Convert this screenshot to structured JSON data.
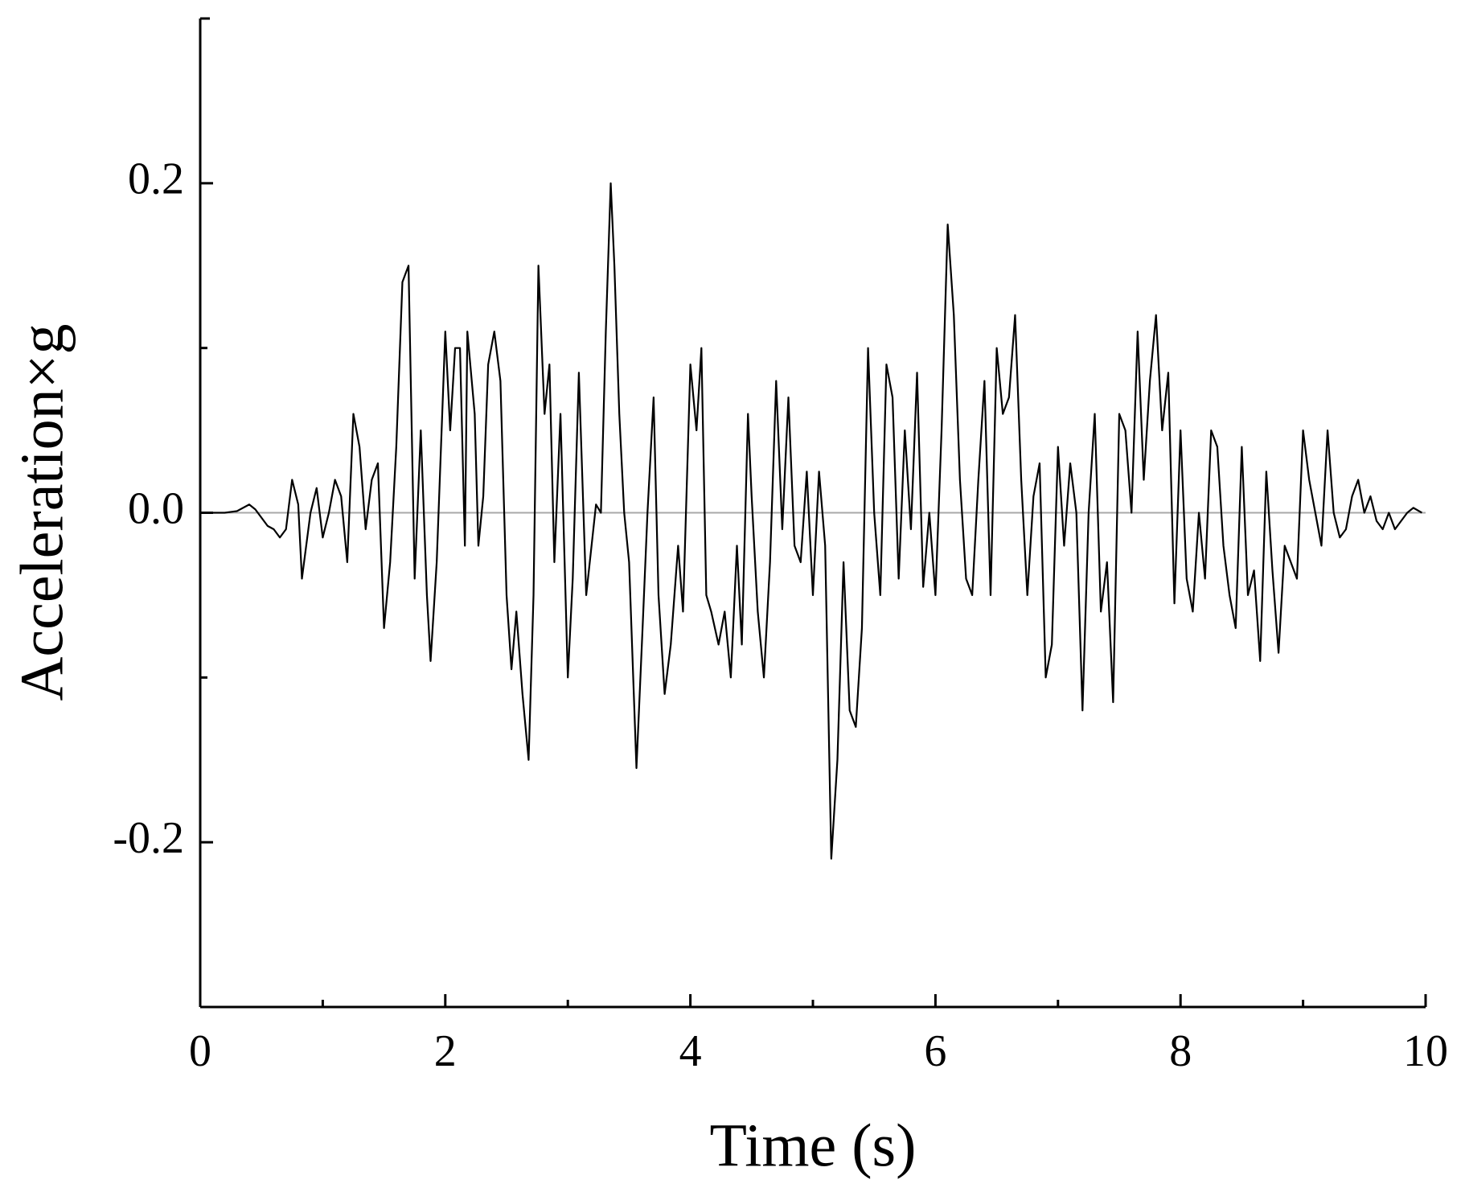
{
  "chart_data": {
    "type": "line",
    "xlabel": "Time (s)",
    "ylabel": "Acceleration×g",
    "x": [
      0,
      0.1,
      0.2,
      0.3,
      0.4,
      0.45,
      0.5,
      0.55,
      0.6,
      0.65,
      0.7,
      0.75,
      0.8,
      0.83,
      0.9,
      0.95,
      1.0,
      1.05,
      1.1,
      1.15,
      1.2,
      1.25,
      1.3,
      1.35,
      1.4,
      1.45,
      1.5,
      1.55,
      1.6,
      1.65,
      1.7,
      1.75,
      1.8,
      1.85,
      1.88,
      1.93,
      1.97,
      2.0,
      2.04,
      2.08,
      2.12,
      2.16,
      2.18,
      2.24,
      2.27,
      2.31,
      2.35,
      2.4,
      2.45,
      2.5,
      2.54,
      2.58,
      2.63,
      2.68,
      2.72,
      2.76,
      2.81,
      2.85,
      2.89,
      2.94,
      3.0,
      3.04,
      3.09,
      3.15,
      3.23,
      3.27,
      3.31,
      3.35,
      3.38,
      3.42,
      3.46,
      3.5,
      3.56,
      3.61,
      3.65,
      3.7,
      3.74,
      3.79,
      3.84,
      3.9,
      3.94,
      4.0,
      4.05,
      4.09,
      4.13,
      4.17,
      4.23,
      4.28,
      4.33,
      4.38,
      4.42,
      4.47,
      4.5,
      4.55,
      4.6,
      4.65,
      4.7,
      4.75,
      4.8,
      4.85,
      4.9,
      4.95,
      5.0,
      5.05,
      5.1,
      5.15,
      5.2,
      5.25,
      5.3,
      5.35,
      5.4,
      5.45,
      5.5,
      5.55,
      5.6,
      5.65,
      5.7,
      5.75,
      5.8,
      5.85,
      5.9,
      5.95,
      6.0,
      6.05,
      6.1,
      6.15,
      6.2,
      6.25,
      6.3,
      6.35,
      6.4,
      6.45,
      6.5,
      6.55,
      6.6,
      6.65,
      6.7,
      6.75,
      6.8,
      6.85,
      6.9,
      6.95,
      7.0,
      7.05,
      7.1,
      7.15,
      7.2,
      7.25,
      7.3,
      7.35,
      7.4,
      7.45,
      7.5,
      7.55,
      7.6,
      7.65,
      7.7,
      7.75,
      7.8,
      7.85,
      7.9,
      7.95,
      8.0,
      8.05,
      8.1,
      8.15,
      8.2,
      8.25,
      8.3,
      8.35,
      8.4,
      8.45,
      8.5,
      8.55,
      8.6,
      8.65,
      8.7,
      8.75,
      8.8,
      8.85,
      8.9,
      8.95,
      9.0,
      9.05,
      9.1,
      9.15,
      9.2,
      9.25,
      9.3,
      9.35,
      9.4,
      9.45,
      9.5,
      9.55,
      9.6,
      9.65,
      9.7,
      9.75,
      9.8,
      9.85,
      9.9,
      9.97
    ],
    "values": [
      0,
      0,
      0,
      0.001,
      0.005,
      0.002,
      -0.003,
      -0.008,
      -0.01,
      -0.015,
      -0.01,
      0.02,
      0.005,
      -0.04,
      0,
      0.015,
      -0.015,
      0,
      0.02,
      0.01,
      -0.03,
      0.06,
      0.04,
      -0.01,
      0.02,
      0.03,
      -0.07,
      -0.03,
      0.04,
      0.14,
      0.15,
      -0.04,
      0.05,
      -0.05,
      -0.09,
      -0.03,
      0.05,
      0.11,
      0.05,
      0.1,
      0.1,
      -0.02,
      0.11,
      0.06,
      -0.02,
      0.01,
      0.09,
      0.11,
      0.08,
      -0.05,
      -0.095,
      -0.06,
      -0.11,
      -0.15,
      -0.05,
      0.15,
      0.06,
      0.09,
      -0.03,
      0.06,
      -0.1,
      -0.04,
      0.085,
      -0.05,
      0.005,
      0,
      0.11,
      0.2,
      0.15,
      0.06,
      0,
      -0.03,
      -0.155,
      -0.07,
      0,
      0.07,
      -0.05,
      -0.11,
      -0.08,
      -0.02,
      -0.06,
      0.09,
      0.05,
      0.1,
      -0.05,
      -0.06,
      -0.08,
      -0.06,
      -0.1,
      -0.02,
      -0.08,
      0.06,
      0.01,
      -0.06,
      -0.1,
      -0.03,
      0.08,
      -0.01,
      0.07,
      -0.02,
      -0.03,
      0.025,
      -0.05,
      0.025,
      -0.02,
      -0.21,
      -0.15,
      -0.03,
      -0.12,
      -0.13,
      -0.07,
      0.1,
      0,
      -0.05,
      0.09,
      0.07,
      -0.04,
      0.05,
      -0.01,
      0.085,
      -0.045,
      0,
      -0.05,
      0.05,
      0.175,
      0.12,
      0.02,
      -0.04,
      -0.05,
      0.02,
      0.08,
      -0.05,
      0.1,
      0.06,
      0.07,
      0.12,
      0.02,
      -0.05,
      0.01,
      0.03,
      -0.1,
      -0.08,
      0.04,
      -0.02,
      0.03,
      0,
      -0.12,
      0,
      0.06,
      -0.06,
      -0.03,
      -0.115,
      0.06,
      0.05,
      0,
      0.11,
      0.02,
      0.08,
      0.12,
      0.05,
      0.085,
      -0.055,
      0.05,
      -0.04,
      -0.06,
      0,
      -0.04,
      0.05,
      0.04,
      -0.02,
      -0.05,
      -0.07,
      0.04,
      -0.05,
      -0.035,
      -0.09,
      0.025,
      -0.035,
      -0.085,
      -0.02,
      -0.03,
      -0.04,
      0.05,
      0.02,
      0,
      -0.02,
      0.05,
      0,
      -0.015,
      -0.01,
      0.01,
      0.02,
      0,
      0.01,
      -0.005,
      -0.01,
      0,
      -0.01,
      -0.005,
      0,
      0.003,
      0
    ],
    "color": "#000000",
    "xlim": [
      0,
      10
    ],
    "xticks": [
      0,
      2,
      4,
      6,
      8,
      10
    ],
    "xminor_ticks": [
      1,
      3,
      5,
      7,
      9
    ],
    "ylim": [
      -0.3,
      0.3
    ],
    "yticks": [
      -0.2,
      {
        "value": 0,
        "label": "0.0"
      },
      0.2
    ],
    "yminor_ticks": [
      -0.1,
      0.1
    ],
    "zero_line": true,
    "zero_line_color": "#a8a8a8"
  }
}
